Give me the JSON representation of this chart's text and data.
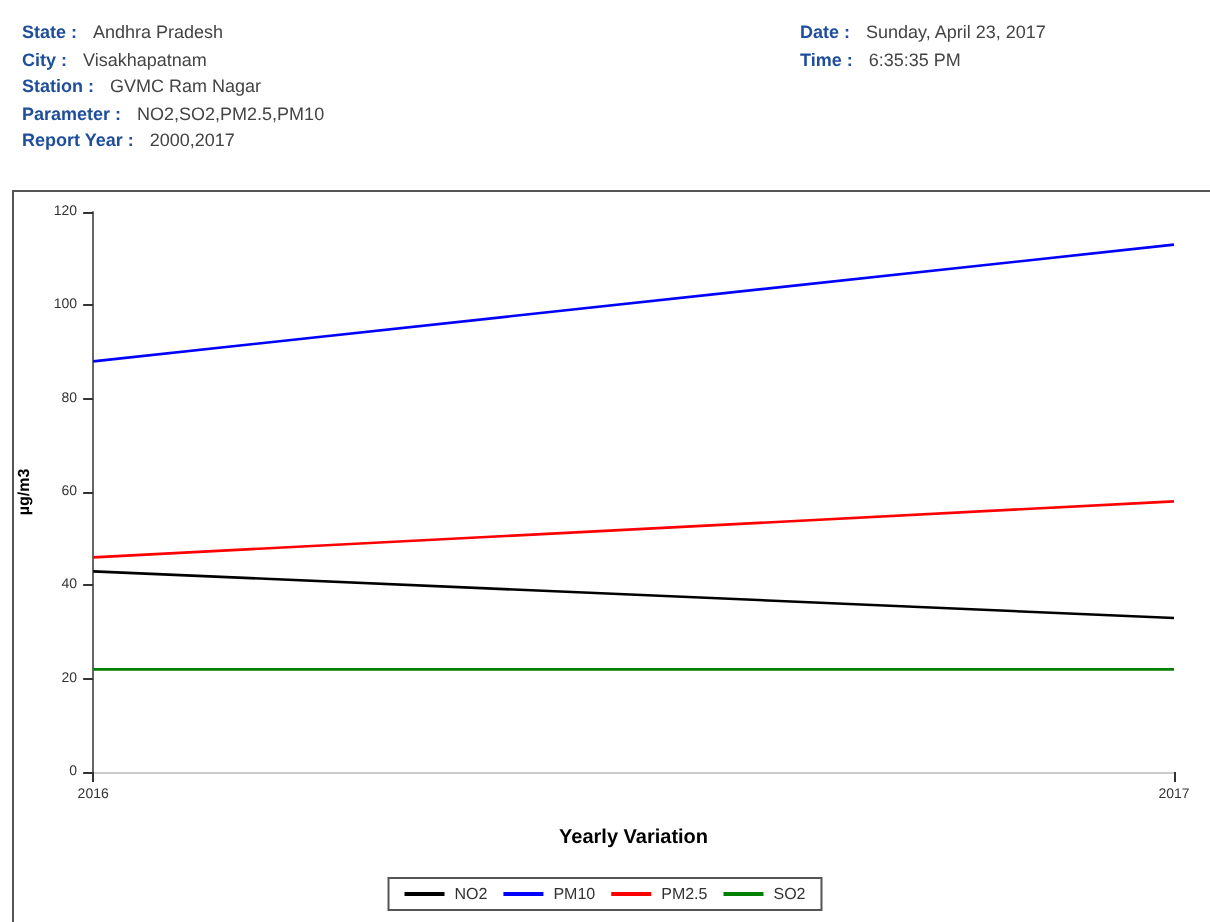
{
  "chart_data": {
    "type": "line",
    "annotations": [
      "State : Andhra Pradesh",
      "City : Visakhapatnam",
      "Station : GVMC Ram Nagar",
      "Parameter : NO2,SO2,PM2.5,PM10",
      "Report Year : 2000,2017",
      "Date : Sunday, April 23, 2017",
      "Time : 6:35:35 PM"
    ],
    "xlabel": "Yearly Variation",
    "ylabel": "µg/m3",
    "categories": [
      "2016",
      "2017"
    ],
    "series": [
      {
        "name": "NO2",
        "color": "#000000",
        "values": [
          43,
          33
        ]
      },
      {
        "name": "PM10",
        "color": "#0000ff",
        "values": [
          88,
          113
        ]
      },
      {
        "name": "PM2.5",
        "color": "#ff0000",
        "values": [
          46,
          58
        ]
      },
      {
        "name": "SO2",
        "color": "#008000",
        "values": [
          22,
          22
        ]
      }
    ],
    "ylim": [
      0,
      120
    ],
    "yticks": [
      0,
      20,
      40,
      60,
      80,
      100,
      120
    ],
    "grid": false,
    "legend": "bottom",
    "marker": "none",
    "line_style": "solid"
  }
}
